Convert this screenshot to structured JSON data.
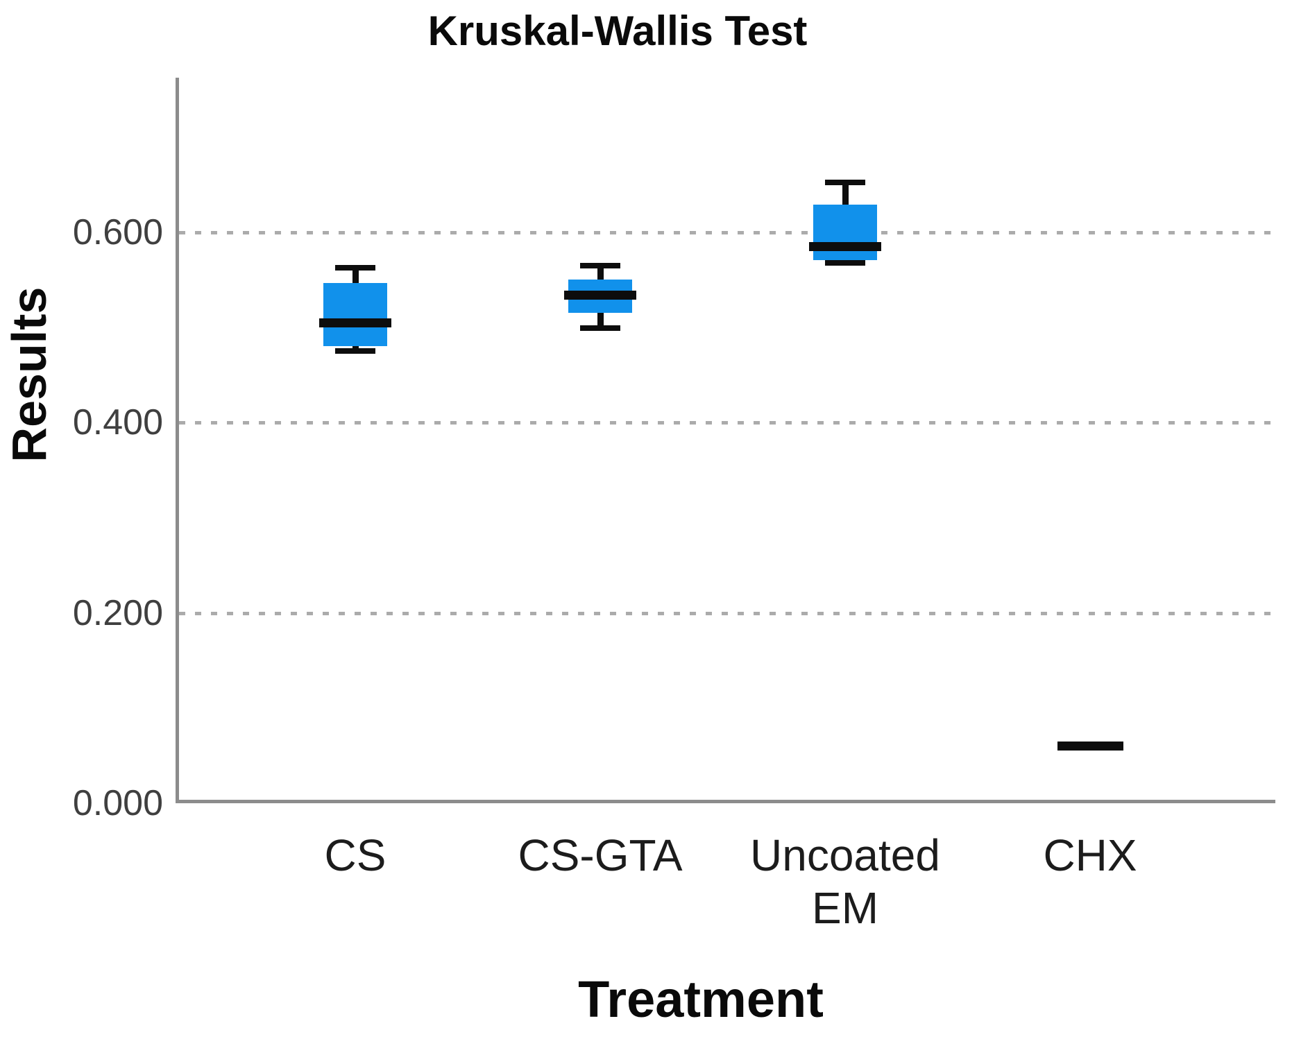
{
  "chart_data": {
    "type": "box",
    "title": "Kruskal-Wallis Test",
    "xlabel": "Treatment",
    "ylabel": "Results",
    "categories": [
      "CS",
      "CS-GTA",
      "Uncoated EM",
      "CHX"
    ],
    "series": [
      {
        "name": "CS",
        "min": 0.475,
        "q1": 0.48,
        "median": 0.505,
        "q3": 0.547,
        "max": 0.563,
        "single_line": false
      },
      {
        "name": "CS-GTA",
        "min": 0.499,
        "q1": 0.515,
        "median": 0.534,
        "q3": 0.55,
        "max": 0.565,
        "single_line": false
      },
      {
        "name": "Uncoated EM",
        "min": 0.568,
        "q1": 0.571,
        "median": 0.585,
        "q3": 0.629,
        "max": 0.652,
        "single_line": false
      },
      {
        "name": "CHX",
        "min": 0.06,
        "q1": 0.06,
        "median": 0.06,
        "q3": 0.06,
        "max": 0.06,
        "single_line": true
      }
    ],
    "yticks": [
      {
        "value": 0.0,
        "label": "0.000"
      },
      {
        "value": 0.2,
        "label": "0.200"
      },
      {
        "value": 0.4,
        "label": "0.400"
      },
      {
        "value": 0.6,
        "label": "0.600"
      }
    ],
    "ylim": [
      0,
      0.762
    ],
    "grid": "horizontal-dashed",
    "legend": "none",
    "colors": {
      "box_fill": "#1191EB",
      "median": "#0d0d0d",
      "whisker": "#0d0d0d",
      "axis": "#8c8c8c",
      "gridline": "#ababab",
      "tick_label": "#3f3f3f",
      "category_label": "#1c1c1c",
      "title": "#0a0a0a"
    }
  }
}
